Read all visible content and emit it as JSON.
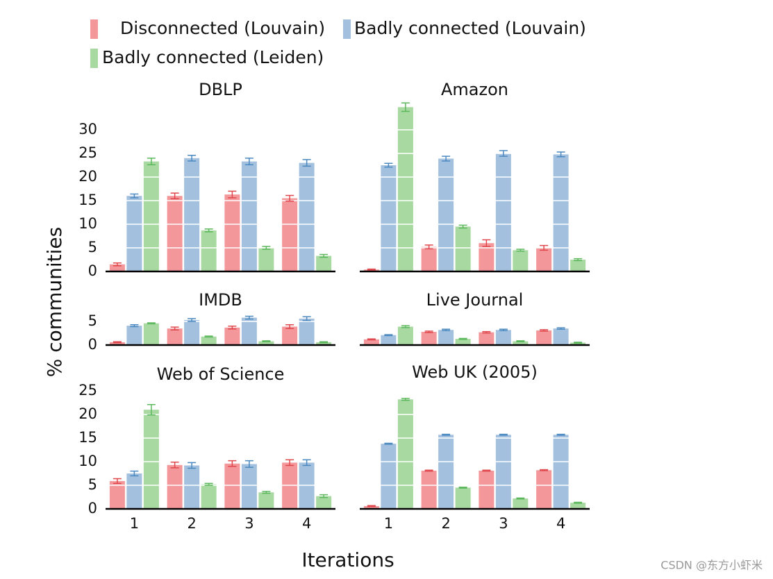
{
  "ylabel": "% communities",
  "xlabel": "Iterations",
  "watermark": "CSDN @东方小虾米",
  "chart_data": [
    {
      "type": "bar",
      "title": "DBLP",
      "ylim": [
        0,
        36
      ],
      "yticks": [
        0,
        5,
        10,
        15,
        20,
        25,
        30
      ],
      "series": [
        {
          "name": "Disconnected (Louvain)",
          "color": "#f4979a",
          "error_color": "#e0474c",
          "values": [
            1.5,
            16,
            16.3,
            15.5
          ],
          "errors": [
            0.3,
            0.6,
            0.7,
            0.6
          ]
        },
        {
          "name": "Badly connected (Louvain)",
          "color": "#a3c1de",
          "error_color": "#4a88c0",
          "values": [
            16,
            24,
            23.3,
            23
          ],
          "errors": [
            0.4,
            0.6,
            0.7,
            0.7
          ]
        },
        {
          "name": "Badly connected (Leiden)",
          "color": "#a7d9a1",
          "error_color": "#5cb85c",
          "values": [
            23.3,
            8.7,
            5,
            3.3
          ],
          "errors": [
            0.7,
            0.3,
            0.3,
            0.3
          ]
        }
      ]
    },
    {
      "type": "bar",
      "title": "Amazon",
      "ylim": [
        0,
        36
      ],
      "series": [
        {
          "name": "Disconnected (Louvain)",
          "color": "#f4979a",
          "error_color": "#e0474c",
          "values": [
            0.4,
            5.2,
            6,
            5
          ],
          "errors": [
            0.1,
            0.4,
            0.7,
            0.5
          ]
        },
        {
          "name": "Badly connected (Louvain)",
          "color": "#a3c1de",
          "error_color": "#4a88c0",
          "values": [
            22.5,
            23.9,
            25,
            24.8
          ],
          "errors": [
            0.4,
            0.5,
            0.6,
            0.5
          ]
        },
        {
          "name": "Badly connected (Leiden)",
          "color": "#a7d9a1",
          "error_color": "#5cb85c",
          "values": [
            34.8,
            9.5,
            4.5,
            2.5
          ],
          "errors": [
            0.9,
            0.3,
            0.2,
            0.2
          ]
        }
      ]
    },
    {
      "type": "bar",
      "title": "IMDB",
      "ylim": [
        0,
        6.5
      ],
      "yticks": [
        0,
        5
      ],
      "series": [
        {
          "name": "Disconnected (Louvain)",
          "color": "#f4979a",
          "error_color": "#e0474c",
          "values": [
            0.6,
            3.5,
            3.7,
            3.9
          ],
          "errors": [
            0.1,
            0.3,
            0.3,
            0.4
          ]
        },
        {
          "name": "Badly connected (Louvain)",
          "color": "#a3c1de",
          "error_color": "#4a88c0",
          "values": [
            4.1,
            5.3,
            5.8,
            5.6
          ],
          "errors": [
            0.2,
            0.3,
            0.3,
            0.4
          ]
        },
        {
          "name": "Badly connected (Leiden)",
          "color": "#a7d9a1",
          "error_color": "#5cb85c",
          "values": [
            4.6,
            1.8,
            0.8,
            0.6
          ],
          "errors": [
            0.1,
            0.1,
            0.1,
            0.1
          ]
        }
      ]
    },
    {
      "type": "bar",
      "title": "Live Journal",
      "ylim": [
        0,
        6.5
      ],
      "series": [
        {
          "name": "Disconnected (Louvain)",
          "color": "#f4979a",
          "error_color": "#e0474c",
          "values": [
            1.2,
            2.8,
            2.7,
            3.1
          ],
          "errors": [
            0.1,
            0.15,
            0.15,
            0.15
          ]
        },
        {
          "name": "Badly connected (Louvain)",
          "color": "#a3c1de",
          "error_color": "#4a88c0",
          "values": [
            2.1,
            3.2,
            3.2,
            3.5
          ],
          "errors": [
            0.1,
            0.15,
            0.15,
            0.15
          ]
        },
        {
          "name": "Badly connected (Leiden)",
          "color": "#a7d9a1",
          "error_color": "#5cb85c",
          "values": [
            3.9,
            1.3,
            0.8,
            0.5
          ],
          "errors": [
            0.2,
            0.1,
            0.1,
            0.1
          ]
        }
      ]
    },
    {
      "type": "bar",
      "title": "Web of Science",
      "ylim": [
        0,
        27
      ],
      "yticks": [
        0,
        5,
        10,
        15,
        20,
        25
      ],
      "categories": [
        "1",
        "2",
        "3",
        "4"
      ],
      "series": [
        {
          "name": "Disconnected (Louvain)",
          "color": "#f4979a",
          "error_color": "#e0474c",
          "values": [
            5.9,
            9.3,
            9.6,
            9.8
          ],
          "errors": [
            0.5,
            0.6,
            0.6,
            0.6
          ]
        },
        {
          "name": "Badly connected (Louvain)",
          "color": "#a3c1de",
          "error_color": "#4a88c0",
          "values": [
            7.5,
            9.2,
            9.5,
            9.8
          ],
          "errors": [
            0.5,
            0.6,
            0.7,
            0.6
          ]
        },
        {
          "name": "Badly connected (Leiden)",
          "color": "#a7d9a1",
          "error_color": "#5cb85c",
          "values": [
            21,
            5.2,
            3.5,
            2.7
          ],
          "errors": [
            1.1,
            0.2,
            0.2,
            0.3
          ]
        }
      ]
    },
    {
      "type": "bar",
      "title": "Web UK (2005)",
      "ylim": [
        0,
        27
      ],
      "categories": [
        "1",
        "2",
        "3",
        "4"
      ],
      "series": [
        {
          "name": "Disconnected (Louvain)",
          "color": "#f4979a",
          "error_color": "#e0474c",
          "values": [
            0.6,
            8.1,
            8.1,
            8.2
          ],
          "errors": [
            0.1,
            0.1,
            0.1,
            0.1
          ]
        },
        {
          "name": "Badly connected (Louvain)",
          "color": "#a3c1de",
          "error_color": "#4a88c0",
          "values": [
            13.8,
            15.7,
            15.7,
            15.7
          ],
          "errors": [
            0.1,
            0.1,
            0.1,
            0.1
          ]
        },
        {
          "name": "Badly connected (Leiden)",
          "color": "#a7d9a1",
          "error_color": "#5cb85c",
          "values": [
            23.2,
            4.5,
            2.2,
            1.3
          ],
          "errors": [
            0.2,
            0.1,
            0.1,
            0.1
          ]
        }
      ]
    }
  ]
}
